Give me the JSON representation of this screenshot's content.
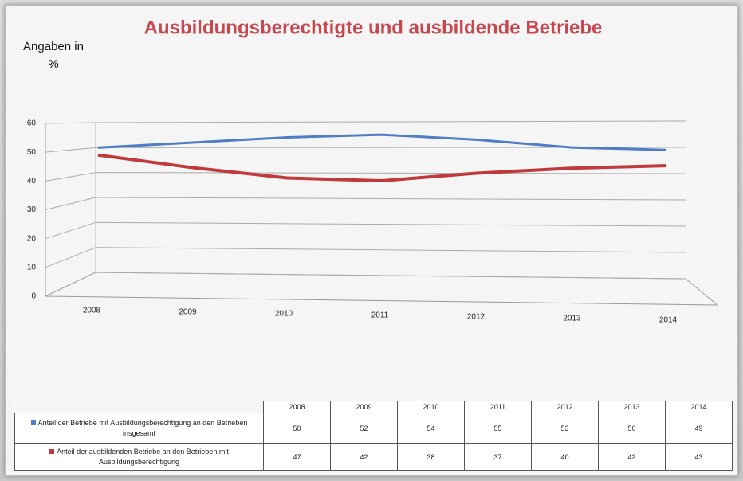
{
  "chart_data": {
    "type": "line",
    "title": "Ausbildungsberechtigte und ausbildende Betriebe",
    "y_label": "Angaben in %",
    "categories": [
      "2008",
      "2009",
      "2010",
      "2011",
      "2012",
      "2013",
      "2014"
    ],
    "series": [
      {
        "name": "Anteil der Betriebe mit Ausbildungsberechtigung an den Betrieben insgesamt",
        "color": "#4f7ec6",
        "values": [
          50,
          52,
          54,
          55,
          53,
          50,
          49
        ]
      },
      {
        "name": "Anteil der ausbildenden Betriebe an den Betrieben mit Ausbildungsberechtigung",
        "color": "#c0393b",
        "values": [
          47,
          42,
          38,
          37,
          40,
          42,
          43
        ]
      }
    ],
    "ylim": [
      0,
      60
    ],
    "yticks": [
      0,
      10,
      20,
      30,
      40,
      50,
      60
    ],
    "grid": true
  }
}
